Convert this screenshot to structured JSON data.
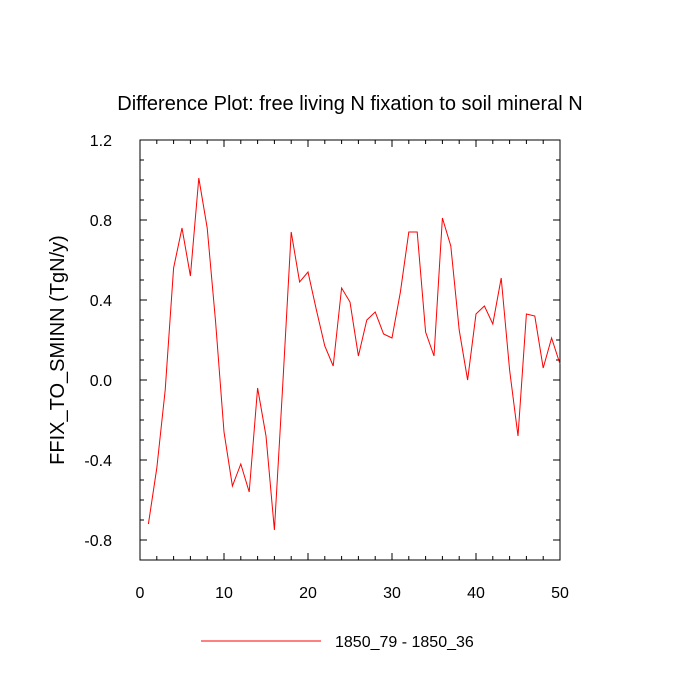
{
  "chart_data": {
    "type": "line",
    "title": "Difference Plot: free living N fixation to soil mineral N",
    "ylabel": "FFIX_TO_SMINN  (TgN/y)",
    "xlabel": "",
    "xlim": [
      0,
      50
    ],
    "ylim": [
      -0.9,
      1.2
    ],
    "x_ticks": [
      0,
      10,
      20,
      30,
      40,
      50
    ],
    "x_tick_labels": [
      "0",
      "10",
      "20",
      "30",
      "40",
      "50"
    ],
    "y_ticks": [
      -0.8,
      -0.4,
      0.0,
      0.4,
      0.8,
      1.2
    ],
    "y_tick_labels": [
      "-0.8",
      "-0.4",
      "0.0",
      "0.4",
      "0.8",
      "1.2"
    ],
    "grid": false,
    "legend_position": "bottom-center",
    "series": [
      {
        "name": "1850_79 - 1850_36",
        "color": "#ff0000",
        "x": [
          1,
          2,
          3,
          4,
          5,
          6,
          7,
          8,
          9,
          10,
          11,
          12,
          13,
          14,
          15,
          16,
          17,
          18,
          19,
          20,
          21,
          22,
          23,
          24,
          25,
          26,
          27,
          28,
          29,
          30,
          31,
          32,
          33,
          34,
          35,
          36,
          37,
          38,
          39,
          40,
          41,
          42,
          43,
          44,
          45,
          46,
          47,
          48,
          49,
          50
        ],
        "values": [
          -0.72,
          -0.44,
          -0.05,
          0.56,
          0.76,
          0.52,
          1.01,
          0.76,
          0.29,
          -0.26,
          -0.53,
          -0.42,
          -0.56,
          -0.04,
          -0.28,
          -0.75,
          -0.02,
          0.74,
          0.49,
          0.54,
          0.35,
          0.17,
          0.07,
          0.46,
          0.39,
          0.12,
          0.3,
          0.34,
          0.23,
          0.21,
          0.44,
          0.74,
          0.74,
          0.24,
          0.12,
          0.81,
          0.67,
          0.25,
          0.0,
          0.33,
          0.37,
          0.28,
          0.51,
          0.05,
          -0.28,
          0.33,
          0.32,
          0.06,
          0.21,
          0.08
        ]
      }
    ]
  }
}
